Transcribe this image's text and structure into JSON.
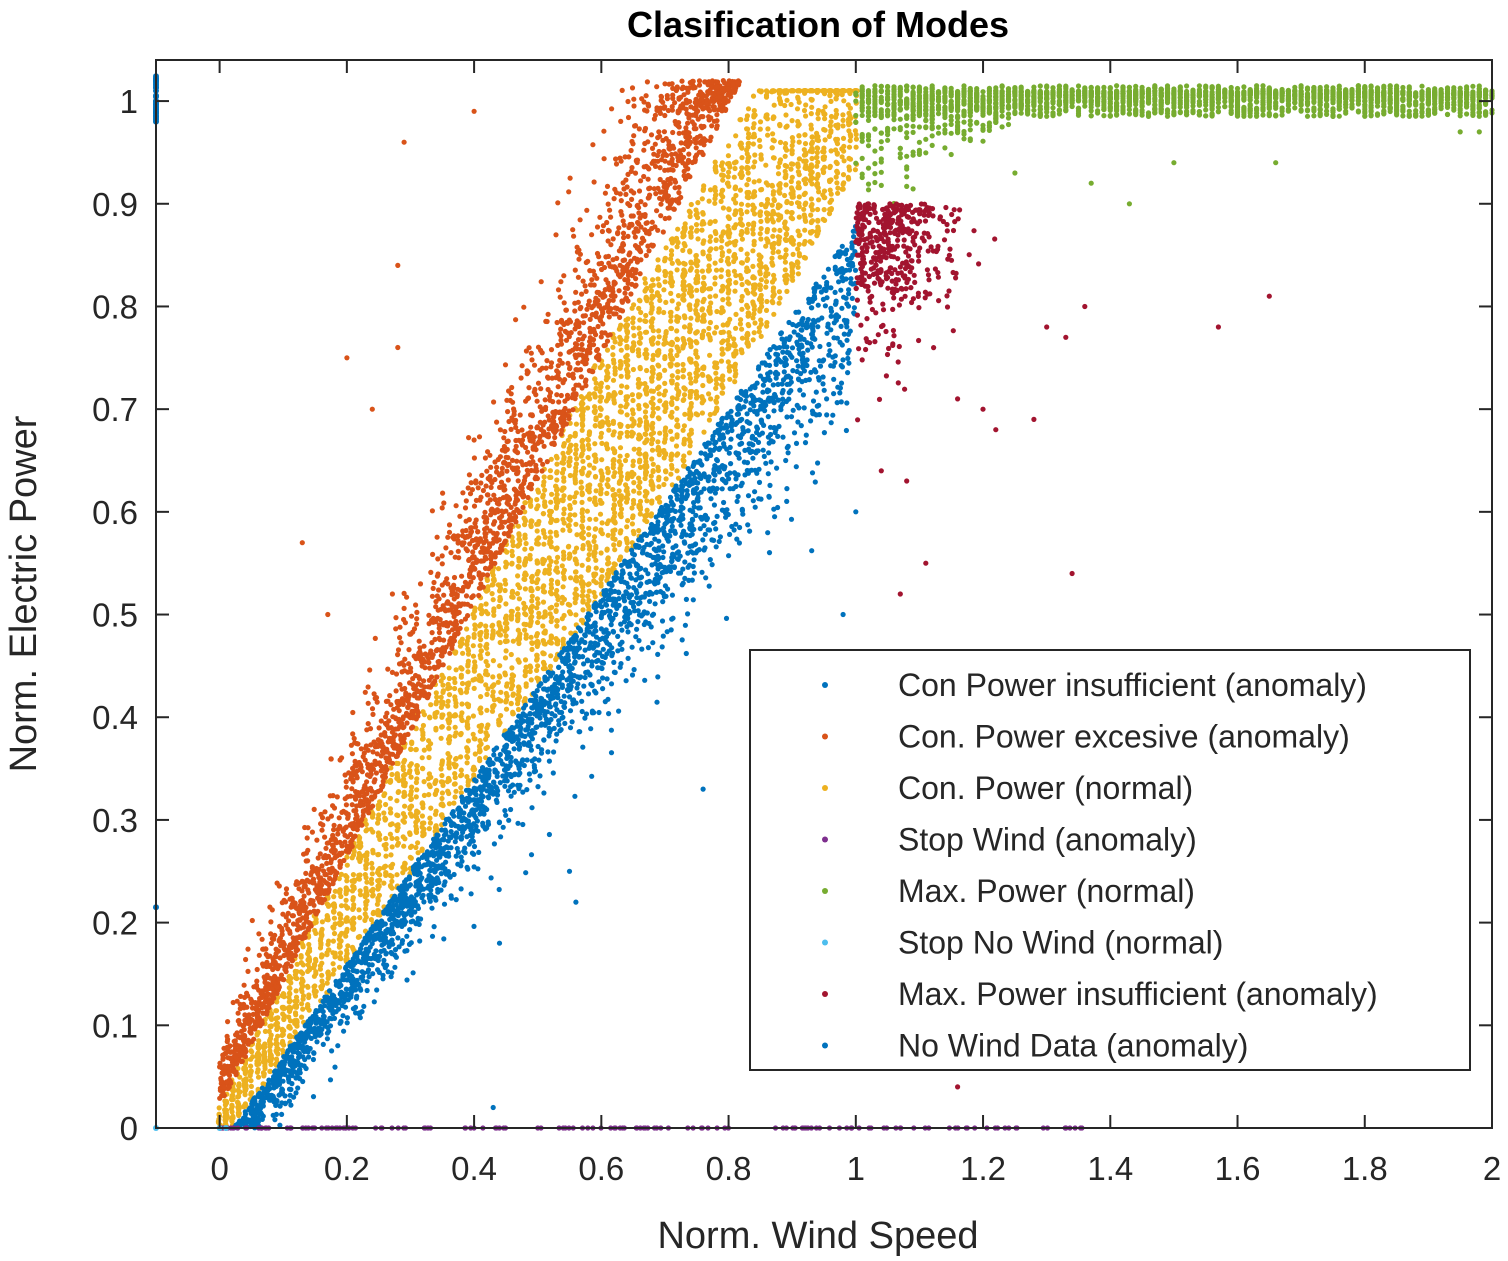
{
  "chart_data": {
    "type": "scatter",
    "title": "Clasification of Modes",
    "xlabel": "Norm. Wind Speed",
    "ylabel": "Norm. Electric Power",
    "xlim": [
      -0.1,
      2
    ],
    "ylim": [
      0,
      1.04
    ],
    "xticks": [
      0,
      0.2,
      0.4,
      0.6,
      0.8,
      1,
      1.2,
      1.4,
      1.6,
      1.8,
      2
    ],
    "xtick_labels": [
      "0",
      "0.2",
      "0.4",
      "0.6",
      "0.8",
      "1",
      "1.2",
      "1.4",
      "1.6",
      "1.8",
      "2"
    ],
    "yticks": [
      0,
      0.1,
      0.2,
      0.3,
      0.4,
      0.5,
      0.6,
      0.7,
      0.8,
      0.9,
      1
    ],
    "ytick_labels": [
      "0",
      "0.1",
      "0.2",
      "0.3",
      "0.4",
      "0.5",
      "0.6",
      "0.7",
      "0.8",
      "0.9",
      "1"
    ],
    "grid": false,
    "legend_position": "bottom-right",
    "series": [
      {
        "name": "Con Power  insufficient (anomaly)",
        "color": "#0072BD",
        "description_region": {
          "x": [
            0.02,
            1.0
          ],
          "y": [
            0.0,
            0.9
          ],
          "lower_band_of_linear_curve": true
        }
      },
      {
        "name": "Con. Power  excesive (anomaly)",
        "color": "#D95319",
        "description_region": {
          "x": [
            0.0,
            0.82
          ],
          "y": [
            0.0,
            1.02
          ],
          "upper_band_of_linear_curve": true
        }
      },
      {
        "name": "Con. Power (normal)",
        "color": "#EDB120",
        "description_region": {
          "x": [
            0.0,
            1.0
          ],
          "y": [
            0.0,
            1.01
          ],
          "central_band_of_linear_curve": true
        }
      },
      {
        "name": "Stop Wind (anomaly)",
        "color": "#7E2F8E",
        "description_region": {
          "x": [
            0.0,
            1.36
          ],
          "y": [
            0.0,
            0.0
          ]
        }
      },
      {
        "name": "Max. Power (normal)",
        "color": "#77AC30",
        "description_region": {
          "x": [
            1.0,
            2.0
          ],
          "y": [
            0.9,
            1.02
          ]
        }
      },
      {
        "name": "Stop No Wind (normal)",
        "color": "#4DBEEE",
        "points": [
          [
            -0.1,
            0.0
          ],
          [
            0.0,
            0.0
          ],
          [
            0.01,
            0.0
          ]
        ]
      },
      {
        "name": "Max. Power insufficient (anomaly)",
        "color": "#A2142F",
        "description_region": {
          "x": [
            1.0,
            1.66
          ],
          "y": [
            0.04,
            0.9
          ]
        }
      },
      {
        "name": "No Wind Data (anomaly)",
        "color": "#0072BD",
        "points": [
          [
            -0.1,
            1.02
          ],
          [
            -0.1,
            1.01
          ],
          [
            -0.1,
            1.0
          ],
          [
            -0.1,
            0.99
          ],
          [
            -0.1,
            0.98
          ],
          [
            -0.1,
            0.215
          ]
        ]
      }
    ],
    "legend_entries": [
      {
        "label": "Con Power  insufficient (anomaly)",
        "color": "#0072BD"
      },
      {
        "label": "Con. Power  excesive (anomaly)",
        "color": "#D95319"
      },
      {
        "label": "Con. Power (normal)",
        "color": "#EDB120"
      },
      {
        "label": "Stop Wind (anomaly)",
        "color": "#7E2F8E"
      },
      {
        "label": "Max. Power (normal)",
        "color": "#77AC30"
      },
      {
        "label": "Stop No Wind (normal)",
        "color": "#4DBEEE"
      },
      {
        "label": "Max. Power insufficient (anomaly)",
        "color": "#A2142F"
      },
      {
        "label": "No Wind Data (anomaly)",
        "color": "#0072BD"
      }
    ]
  }
}
